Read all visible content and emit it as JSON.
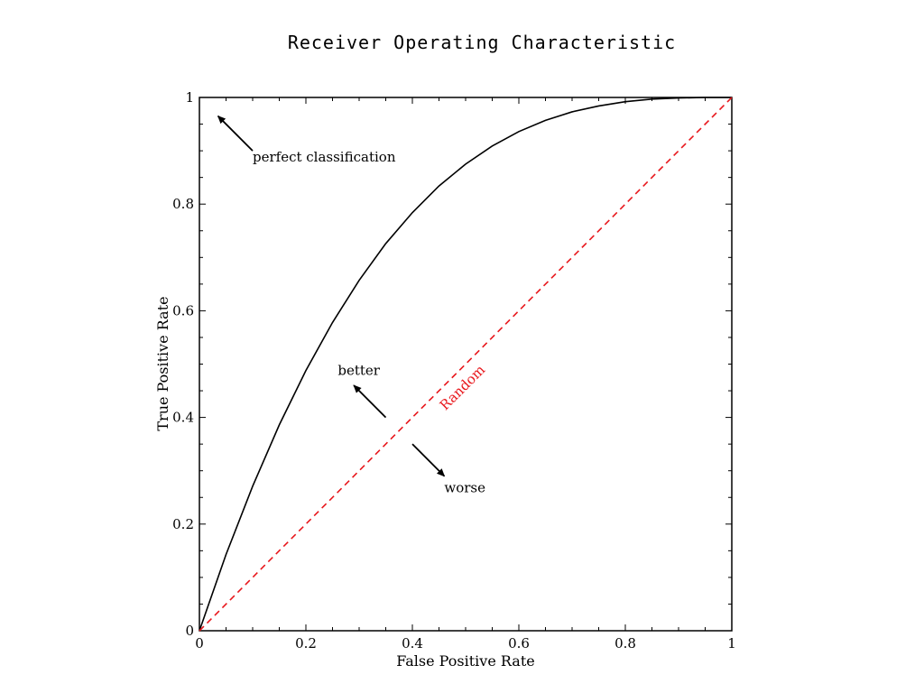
{
  "chart_data": {
    "type": "line",
    "title": "Receiver Operating Characteristic",
    "xlabel": "False Positive Rate",
    "ylabel": "True Positive Rate",
    "xlim": [
      0,
      1
    ],
    "ylim": [
      0,
      1
    ],
    "grid": false,
    "x_ticks": [
      "0",
      "0.2",
      "0.4",
      "0.6",
      "0.8",
      "1"
    ],
    "y_ticks": [
      "0",
      "0.2",
      "0.4",
      "0.6",
      "0.8",
      "1"
    ],
    "x_tick_values": [
      0,
      0.2,
      0.4,
      0.6,
      0.8,
      1
    ],
    "y_tick_values": [
      0,
      0.2,
      0.4,
      0.6,
      0.8,
      1
    ],
    "series": [
      {
        "style": "solid",
        "color": "#000000",
        "x": [
          0,
          0.05,
          0.1,
          0.15,
          0.2,
          0.25,
          0.3,
          0.35,
          0.4,
          0.45,
          0.5,
          0.55,
          0.6,
          0.65,
          0.7,
          0.75,
          0.8,
          0.85,
          0.9,
          0.95,
          1
        ],
        "y": [
          0,
          0.143,
          0.271,
          0.386,
          0.488,
          0.578,
          0.657,
          0.726,
          0.784,
          0.834,
          0.875,
          0.909,
          0.936,
          0.957,
          0.973,
          0.984,
          0.992,
          0.997,
          0.999,
          1.0,
          1.0
        ]
      },
      {
        "style": "dashed",
        "color": "#e8171c",
        "x": [
          0,
          1
        ],
        "y": [
          0,
          1
        ]
      }
    ],
    "annotations": [
      {
        "key": "perfect",
        "text": "perfect classification",
        "text_x": 0.1,
        "text_y": 0.88,
        "arrow_from": [
          0.1,
          0.9
        ],
        "arrow_to": [
          0.035,
          0.965
        ]
      },
      {
        "key": "better",
        "text": "better",
        "text_x": 0.26,
        "text_y": 0.48,
        "arrow_from": [
          0.35,
          0.4
        ],
        "arrow_to": [
          0.29,
          0.46
        ]
      },
      {
        "key": "worse",
        "text": "worse",
        "text_x": 0.46,
        "text_y": 0.26,
        "arrow_from": [
          0.4,
          0.35
        ],
        "arrow_to": [
          0.46,
          0.29
        ]
      },
      {
        "key": "random",
        "text": "Random",
        "text_x": 0.5,
        "text_y": 0.45,
        "rotation": -45,
        "color": "#e8171c"
      }
    ]
  }
}
